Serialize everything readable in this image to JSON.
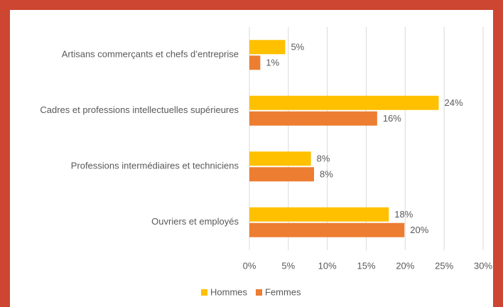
{
  "chart_data": {
    "type": "hbar",
    "categories": [
      "Artisans commerçants et chefs d’entreprise",
      "Cadres et professions intellectuelles supérieures",
      "Professions intermédiaires et techniciens",
      "Ouvriers et employés"
    ],
    "series": [
      {
        "name": "Hommes",
        "color": "#ffc000",
        "values": [
          4.6,
          24.3,
          7.9,
          17.9
        ],
        "value_labels": [
          "5%",
          "24%",
          "8%",
          "18%"
        ]
      },
      {
        "name": "Femmes",
        "color": "#ed7d31",
        "values": [
          1.4,
          16.4,
          8.3,
          19.9
        ],
        "value_labels": [
          "1%",
          "16%",
          "8%",
          "20%"
        ]
      }
    ],
    "xlim": [
      0,
      30
    ],
    "xticks": [
      {
        "value": 0,
        "label": "0%"
      },
      {
        "value": 5,
        "label": "5%"
      },
      {
        "value": 10,
        "label": "10%"
      },
      {
        "value": 15,
        "label": "15%"
      },
      {
        "value": 20,
        "label": "20%"
      },
      {
        "value": 25,
        "label": "25%"
      },
      {
        "value": 30,
        "label": "30%"
      }
    ],
    "grid": true,
    "legend": "bottom"
  }
}
